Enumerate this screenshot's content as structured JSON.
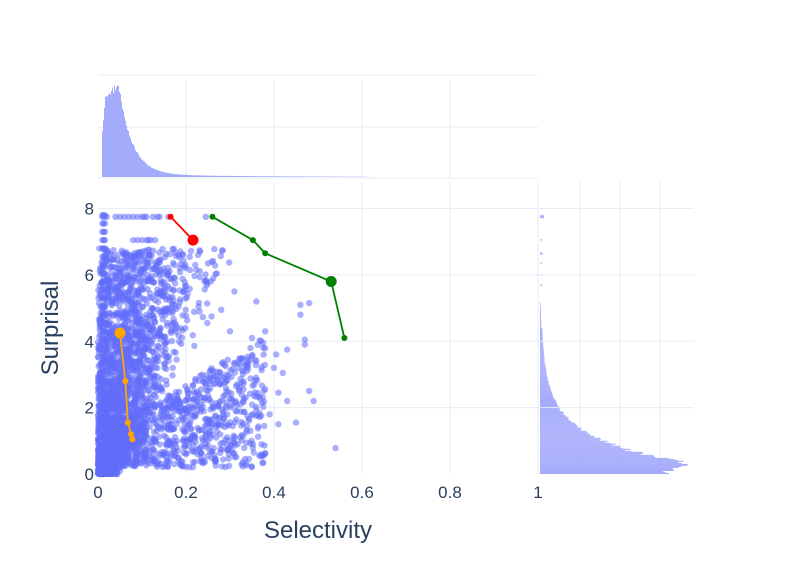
{
  "chart_data": {
    "type": "scatter",
    "xlabel": "Selectivity",
    "ylabel": "Surprisal",
    "xlim": [
      0,
      1
    ],
    "ylim": [
      0,
      8.8
    ],
    "x_ticks": [
      0,
      0.2,
      0.4,
      0.6,
      0.8,
      1
    ],
    "x_tick_labels": [
      "0",
      "0.2",
      "0.4",
      "0.6",
      "0.8",
      "1"
    ],
    "y_ticks": [
      0,
      2,
      4,
      6,
      8
    ],
    "y_tick_labels": [
      "0",
      "2",
      "4",
      "6",
      "8"
    ],
    "grid": true,
    "legend": "none",
    "colors": {
      "scatter": "#636efa",
      "histogram": "#a5abfb",
      "grid": "#e6ecf5",
      "text": "#2a3f5f",
      "red": "#ff0000",
      "green": "#008000",
      "orange": "#ffa500"
    },
    "paths": [
      {
        "color": "#ff0000",
        "x": [
          0.165,
          0.216
        ],
        "y": [
          7.75,
          7.05
        ]
      },
      {
        "color": "#008000",
        "x": [
          0.26,
          0.352,
          0.38,
          0.53,
          0.56
        ],
        "y": [
          7.75,
          7.05,
          6.65,
          5.8,
          4.1
        ]
      },
      {
        "color": "#ffa500",
        "x": [
          0.05,
          0.062,
          0.068,
          0.075,
          0.078
        ],
        "y": [
          4.25,
          2.8,
          1.55,
          1.2,
          1.05
        ]
      }
    ],
    "x_marginal": {
      "type": "histogram",
      "peak_x": 0.045,
      "shape": "right-skewed"
    },
    "y_marginal": {
      "type": "histogram",
      "peak_y": 0.3,
      "shape": "decaying"
    }
  }
}
